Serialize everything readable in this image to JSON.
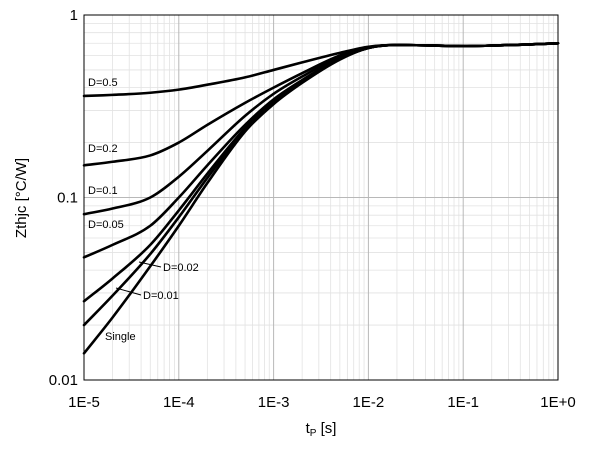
{
  "chart_data": {
    "type": "line",
    "xscale": "log",
    "yscale": "log",
    "xlim": [
      1e-05,
      1
    ],
    "ylim": [
      0.01,
      1
    ],
    "grid": true,
    "xlabel": {
      "main": "t",
      "sub": "P",
      "unit": " [s]"
    },
    "ylabel": "Zthjc [°C/W]",
    "x_ticks": [
      {
        "value": 1e-05,
        "label": "1E-5"
      },
      {
        "value": 0.0001,
        "label": "1E-4"
      },
      {
        "value": 0.001,
        "label": "1E-3"
      },
      {
        "value": 0.01,
        "label": "1E-2"
      },
      {
        "value": 0.1,
        "label": "1E-1"
      },
      {
        "value": 1,
        "label": "1E+0"
      }
    ],
    "y_ticks": [
      {
        "value": 0.01,
        "label": "0.01"
      },
      {
        "value": 0.1,
        "label": "0.1"
      },
      {
        "value": 1,
        "label": "1"
      }
    ],
    "series": [
      {
        "name": "D=0.5",
        "x": [
          1e-05,
          2e-05,
          5e-05,
          0.0001,
          0.0002,
          0.0005,
          0.001,
          0.002,
          0.005,
          0.01,
          0.02,
          0.05,
          0.1,
          0.2,
          0.5,
          1
        ],
        "y": [
          0.36,
          0.365,
          0.375,
          0.39,
          0.415,
          0.455,
          0.5,
          0.55,
          0.62,
          0.67,
          0.685,
          0.68,
          0.675,
          0.68,
          0.69,
          0.7
        ]
      },
      {
        "name": "D=0.2",
        "x": [
          1e-05,
          2e-05,
          5e-05,
          0.0001,
          0.0002,
          0.0005,
          0.001,
          0.002,
          0.005,
          0.01,
          0.02,
          0.05,
          0.1,
          0.2,
          0.5,
          1
        ],
        "y": [
          0.15,
          0.157,
          0.17,
          0.2,
          0.25,
          0.33,
          0.4,
          0.48,
          0.6,
          0.665,
          0.685,
          0.68,
          0.675,
          0.68,
          0.69,
          0.7
        ]
      },
      {
        "name": "D=0.1",
        "x": [
          1e-05,
          2e-05,
          5e-05,
          0.0001,
          0.0002,
          0.0005,
          0.001,
          0.002,
          0.005,
          0.01,
          0.02,
          0.05,
          0.1,
          0.2,
          0.5,
          1
        ],
        "y": [
          0.081,
          0.087,
          0.1,
          0.13,
          0.18,
          0.28,
          0.37,
          0.46,
          0.59,
          0.665,
          0.685,
          0.68,
          0.675,
          0.68,
          0.69,
          0.7
        ]
      },
      {
        "name": "D=0.05",
        "x": [
          1e-05,
          2e-05,
          5e-05,
          0.0001,
          0.0002,
          0.0005,
          0.001,
          0.002,
          0.005,
          0.01,
          0.02,
          0.05,
          0.1,
          0.2,
          0.5,
          1
        ],
        "y": [
          0.047,
          0.055,
          0.07,
          0.1,
          0.15,
          0.25,
          0.345,
          0.44,
          0.58,
          0.66,
          0.685,
          0.68,
          0.675,
          0.68,
          0.69,
          0.7
        ]
      },
      {
        "name": "D=0.02",
        "x": [
          1e-05,
          2e-05,
          5e-05,
          0.0001,
          0.0002,
          0.0005,
          0.001,
          0.002,
          0.005,
          0.01,
          0.02,
          0.05,
          0.1,
          0.2,
          0.5,
          1
        ],
        "y": [
          0.027,
          0.036,
          0.055,
          0.085,
          0.135,
          0.24,
          0.335,
          0.435,
          0.575,
          0.66,
          0.685,
          0.68,
          0.675,
          0.68,
          0.69,
          0.7
        ]
      },
      {
        "name": "D=0.01",
        "x": [
          1e-05,
          2e-05,
          5e-05,
          0.0001,
          0.0002,
          0.0005,
          0.001,
          0.002,
          0.005,
          0.01,
          0.02,
          0.05,
          0.1,
          0.2,
          0.5,
          1
        ],
        "y": [
          0.02,
          0.029,
          0.049,
          0.078,
          0.128,
          0.235,
          0.33,
          0.43,
          0.575,
          0.66,
          0.685,
          0.68,
          0.675,
          0.68,
          0.69,
          0.7
        ]
      },
      {
        "name": "Single",
        "x": [
          1e-05,
          2e-05,
          5e-05,
          0.0001,
          0.0002,
          0.0005,
          0.001,
          0.002,
          0.005,
          0.01,
          0.02,
          0.05,
          0.1,
          0.2,
          0.5,
          1
        ],
        "y": [
          0.014,
          0.022,
          0.042,
          0.07,
          0.12,
          0.23,
          0.325,
          0.425,
          0.57,
          0.66,
          0.685,
          0.68,
          0.675,
          0.68,
          0.69,
          0.7
        ]
      }
    ]
  }
}
